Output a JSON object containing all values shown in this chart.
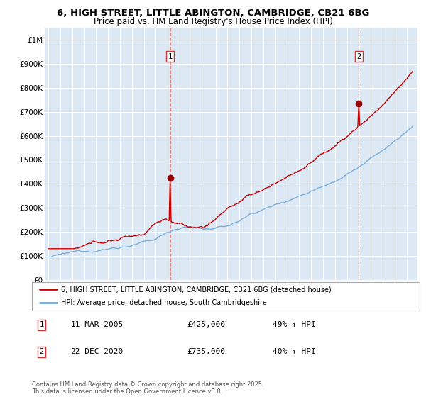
{
  "title": "6, HIGH STREET, LITTLE ABINGTON, CAMBRIDGE, CB21 6BG",
  "subtitle": "Price paid vs. HM Land Registry's House Price Index (HPI)",
  "red_label": "6, HIGH STREET, LITTLE ABINGTON, CAMBRIDGE, CB21 6BG (detached house)",
  "blue_label": "HPI: Average price, detached house, South Cambridgeshire",
  "annotation1_date": "11-MAR-2005",
  "annotation1_price": "£425,000",
  "annotation1_hpi": "49% ↑ HPI",
  "annotation2_date": "22-DEC-2020",
  "annotation2_price": "£735,000",
  "annotation2_hpi": "40% ↑ HPI",
  "footer": "Contains HM Land Registry data © Crown copyright and database right 2025.\nThis data is licensed under the Open Government Licence v3.0.",
  "ylim": [
    0,
    1050000
  ],
  "yticks": [
    0,
    100000,
    200000,
    300000,
    400000,
    500000,
    600000,
    700000,
    800000,
    900000,
    1000000
  ],
  "ytick_labels": [
    "£0",
    "£100K",
    "£200K",
    "£300K",
    "£400K",
    "£500K",
    "£600K",
    "£700K",
    "£800K",
    "£900K",
    "£1M"
  ],
  "red_color": "#cc0000",
  "blue_color": "#7aaddb",
  "marker_color": "#990000",
  "vline_color": "#dd8888",
  "plot_bg_color": "#dce9f5",
  "fig_bg_color": "#ffffff",
  "title_fontsize": 9.5,
  "subtitle_fontsize": 8.5,
  "annotation1_year": 2005.19,
  "annotation2_year": 2020.97,
  "xlim_left": 1994.7,
  "xlim_right": 2025.9
}
